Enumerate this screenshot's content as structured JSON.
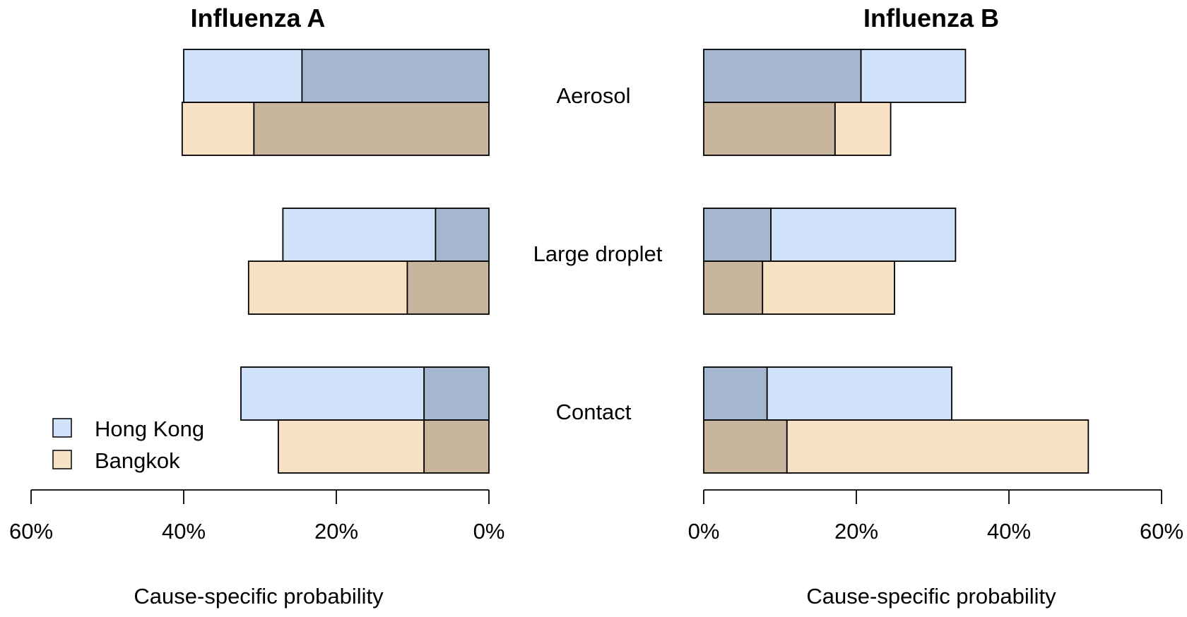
{
  "chart_data": [
    {
      "type": "bar",
      "title": "Influenza A",
      "orientation": "horizontal",
      "direction": "leftward",
      "xlabel": "Cause-specific probability",
      "xlim": [
        0,
        60
      ],
      "ticks": [
        "60%",
        "40%",
        "20%",
        "0%"
      ],
      "tick_values": [
        60,
        40,
        20,
        0
      ],
      "categories": [
        "Aerosol",
        "Large droplet",
        "Contact"
      ],
      "series": [
        {
          "name": "Hong Kong",
          "values": [
            40,
            27,
            32.5
          ],
          "inner_values": [
            24.5,
            7,
            8.5
          ]
        },
        {
          "name": "Bangkok",
          "values": [
            40.2,
            31.5,
            27.6
          ],
          "inner_values": [
            30.8,
            10.7,
            8.5
          ]
        }
      ]
    },
    {
      "type": "bar",
      "title": "Influenza B",
      "orientation": "horizontal",
      "direction": "rightward",
      "xlabel": "Cause-specific probability",
      "xlim": [
        0,
        60
      ],
      "ticks": [
        "0%",
        "20%",
        "40%",
        "60%"
      ],
      "tick_values": [
        0,
        20,
        40,
        60
      ],
      "categories": [
        "Aerosol",
        "Large droplet",
        "Contact"
      ],
      "series": [
        {
          "name": "Hong Kong",
          "values": [
            34.3,
            33,
            32.5
          ],
          "inner_values": [
            20.6,
            8.8,
            8.3
          ]
        },
        {
          "name": "Bangkok",
          "values": [
            24.5,
            25,
            50.4
          ],
          "inner_values": [
            17.2,
            7.7,
            10.9
          ]
        }
      ]
    }
  ],
  "legend": {
    "items": [
      {
        "label": "Hong Kong",
        "color": "#cfe2f9"
      },
      {
        "label": "Bangkok",
        "color": "#f7e2c5"
      }
    ]
  },
  "colors": {
    "hong_kong_light": "#cfe2f9",
    "hong_kong_dark": "#a5b6cf",
    "bangkok_light": "#f7e2c5",
    "bangkok_dark": "#c7b59e",
    "stroke": "#000000"
  }
}
